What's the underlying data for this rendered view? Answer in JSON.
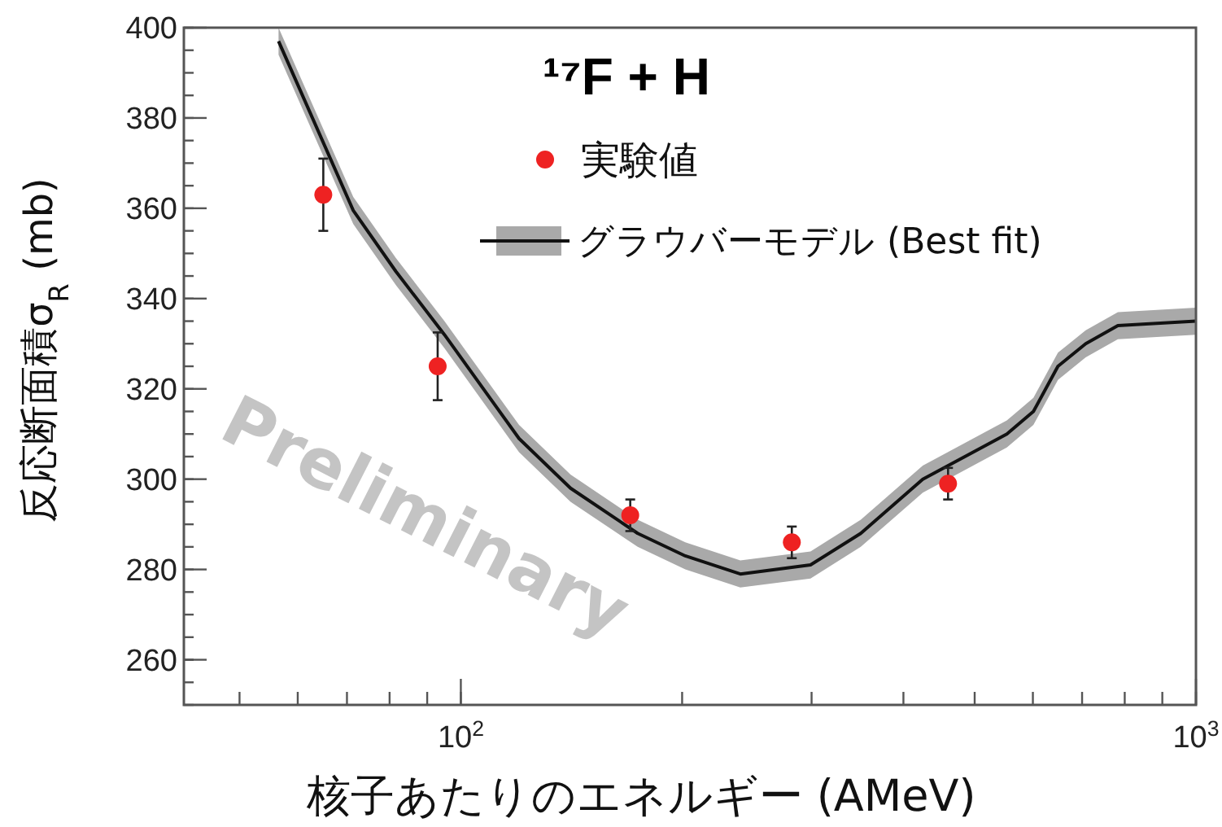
{
  "chart_data": {
    "type": "scatter",
    "title": "¹⁷F + H",
    "xlabel": "核子あたりのエネルギー (AMeV)",
    "ylabel": "反応断面積σ$_{R}$ (mb)",
    "log": "x",
    "xlim": [
      42,
      1000
    ],
    "xticks": [
      {
        "value": 100,
        "label": "10$^{2}$"
      },
      {
        "value": 1000,
        "label": "10$^{3}$"
      }
    ],
    "ylim": [
      250,
      400
    ],
    "yticks": [
      260,
      280,
      300,
      320,
      340,
      360,
      380,
      400
    ],
    "grid": false,
    "legend": "top right",
    "annotations": [
      "Preliminary"
    ],
    "series": [
      {
        "name": "実験値",
        "marker": "circle",
        "color": "#ee2222",
        "x": [
          65,
          93,
          170,
          282,
          460
        ],
        "values": [
          363,
          325,
          292,
          286,
          299
        ],
        "errors": [
          8,
          7.5,
          3.5,
          3.5,
          3.5
        ]
      },
      {
        "name": "グラウバーモデル (Best fit)",
        "type": "line",
        "color": "#111111",
        "line_style": "solid",
        "x": [
          56.5,
          71.4,
          81.6,
          95,
          120,
          141,
          174,
          202,
          240,
          299,
          350,
          425,
          553,
          601,
          649,
          708,
          783,
          1000
        ],
        "values": [
          397,
          359.5,
          346,
          332,
          309,
          298,
          288,
          283,
          279,
          281,
          288,
          300,
          310,
          315,
          325,
          330,
          334,
          335
        ],
        "lower": [
          394,
          356.5,
          343,
          329,
          306,
          295,
          285,
          280,
          276,
          278,
          285,
          297,
          307,
          312,
          322,
          327,
          331,
          332
        ],
        "upper": [
          400,
          362.5,
          349,
          335,
          312,
          301,
          291,
          286,
          282,
          284,
          291,
          303,
          313,
          318,
          328,
          333,
          337,
          338
        ]
      }
    ]
  }
}
